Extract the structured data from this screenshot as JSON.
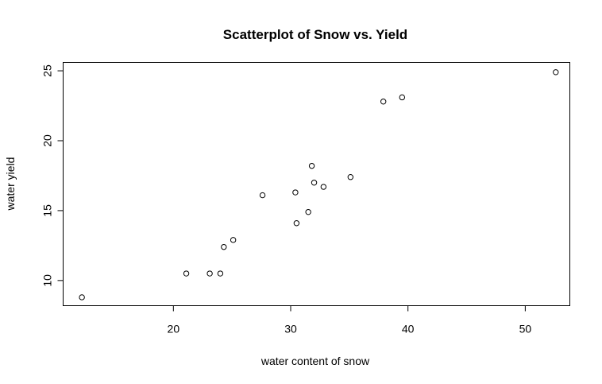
{
  "chart_data": {
    "type": "scatter",
    "title": "Scatterplot of Snow vs. Yield",
    "xlabel": "water content of snow",
    "ylabel": "water yield",
    "xlim": [
      10.6,
      53.8
    ],
    "ylim": [
      8.2,
      25.6
    ],
    "xticks": [
      20,
      30,
      40,
      50
    ],
    "yticks": [
      10,
      15,
      20,
      25
    ],
    "grid": false,
    "points": [
      {
        "x": 12.2,
        "y": 8.8
      },
      {
        "x": 21.1,
        "y": 10.5
      },
      {
        "x": 23.1,
        "y": 10.5
      },
      {
        "x": 24.0,
        "y": 10.5
      },
      {
        "x": 24.3,
        "y": 12.4
      },
      {
        "x": 25.1,
        "y": 12.9
      },
      {
        "x": 27.6,
        "y": 16.1
      },
      {
        "x": 30.4,
        "y": 16.3
      },
      {
        "x": 30.5,
        "y": 14.1
      },
      {
        "x": 31.5,
        "y": 14.9
      },
      {
        "x": 31.8,
        "y": 18.2
      },
      {
        "x": 32.0,
        "y": 17.0
      },
      {
        "x": 32.8,
        "y": 16.7
      },
      {
        "x": 35.1,
        "y": 17.4
      },
      {
        "x": 37.9,
        "y": 22.8
      },
      {
        "x": 39.5,
        "y": 23.1
      },
      {
        "x": 52.6,
        "y": 24.9
      }
    ]
  }
}
